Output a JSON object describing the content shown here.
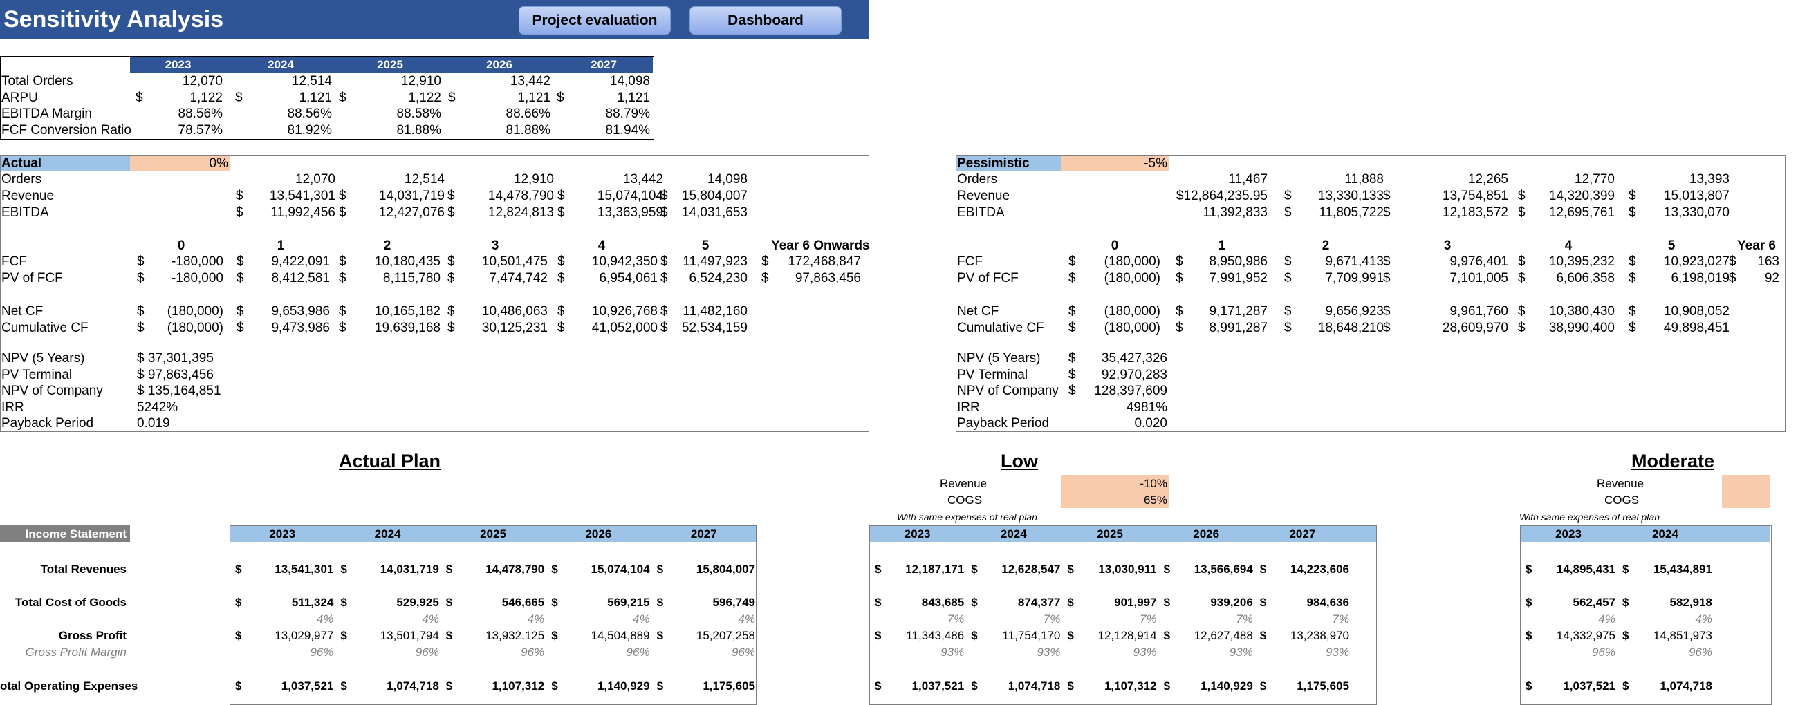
{
  "header": {
    "title": "Sensitivity Analysis",
    "buttons": [
      "Project evaluation",
      "Dashboard"
    ]
  },
  "summary": {
    "years": [
      "2023",
      "2024",
      "2025",
      "2026",
      "2027"
    ],
    "rows": [
      {
        "label": "Total Orders",
        "values": [
          "12,070",
          "12,514",
          "12,910",
          "13,442",
          "14,098"
        ]
      },
      {
        "label": "ARPU",
        "values": [
          "1,122",
          "1,121",
          "1,122",
          "1,121",
          "1,121"
        ]
      },
      {
        "label": "EBITDA Margin",
        "values": [
          "88.56%",
          "88.56%",
          "88.58%",
          "88.66%",
          "88.79%"
        ]
      },
      {
        "label": "FCF Conversion Ratio",
        "values": [
          "78.57%",
          "81.92%",
          "81.88%",
          "81.88%",
          "81.94%"
        ]
      }
    ]
  },
  "scenario_actual": {
    "name": "Actual",
    "pct": "0%",
    "ops": [
      {
        "label": "Orders",
        "values": [
          "12,070",
          "12,514",
          "12,910",
          "13,442",
          "14,098"
        ]
      },
      {
        "label": "Revenue",
        "values": [
          "13,541,301",
          "14,031,719",
          "14,478,790",
          "15,074,104",
          "15,804,007"
        ]
      },
      {
        "label": "EBITDA",
        "values": [
          "11,992,456",
          "12,427,076",
          "12,824,813",
          "13,363,959",
          "14,031,653"
        ]
      }
    ],
    "periods": [
      "0",
      "1",
      "2",
      "3",
      "4",
      "5",
      "Year 6 Onwards"
    ],
    "cf": [
      {
        "label": "FCF",
        "values": [
          "-180,000",
          "9,422,091",
          "10,180,435",
          "10,501,475",
          "10,942,350",
          "11,497,923",
          "172,468,847"
        ]
      },
      {
        "label": "PV of FCF",
        "values": [
          "-180,000",
          "8,412,581",
          "8,115,780",
          "7,474,742",
          "6,954,061",
          "6,524,230",
          "97,863,456"
        ]
      },
      {
        "label": "Net CF",
        "values": [
          "(180,000)",
          "9,653,986",
          "10,165,182",
          "10,486,063",
          "10,926,768",
          "11,482,160"
        ]
      },
      {
        "label": "Cumulative CF",
        "values": [
          "(180,000)",
          "9,473,986",
          "19,639,168",
          "30,125,231",
          "41,052,000",
          "52,534,159"
        ]
      }
    ],
    "metrics": [
      {
        "label": "NPV (5 Years)",
        "value": "$ 37,301,395"
      },
      {
        "label": "PV Terminal",
        "value": "$ 97,863,456"
      },
      {
        "label": "NPV of Company",
        "value": "$ 135,164,851"
      },
      {
        "label": "IRR",
        "value": "5242%"
      },
      {
        "label": "Payback Period",
        "value": "0.019"
      }
    ]
  },
  "scenario_pess": {
    "name": "Pessimistic",
    "pct": "-5%",
    "ops": [
      {
        "label": "Orders",
        "values": [
          "11,467",
          "11,888",
          "12,265",
          "12,770",
          "13,393"
        ]
      },
      {
        "label": "Revenue",
        "values": [
          "$12,864,235.95",
          "13,330,133",
          "13,754,851",
          "14,320,399",
          "15,013,807"
        ]
      },
      {
        "label": "EBITDA",
        "values": [
          "11,392,833",
          "11,805,722",
          "12,183,572",
          "12,695,761",
          "13,330,070"
        ]
      }
    ],
    "periods": [
      "0",
      "1",
      "2",
      "3",
      "4",
      "5",
      "Year 6"
    ],
    "cf": [
      {
        "label": "FCF",
        "values": [
          "(180,000)",
          "8,950,986",
          "9,671,413",
          "9,976,401",
          "10,395,232",
          "10,923,027",
          "163"
        ]
      },
      {
        "label": "PV of FCF",
        "values": [
          "(180,000)",
          "7,991,952",
          "7,709,991",
          "7,101,005",
          "6,606,358",
          "6,198,019",
          "92"
        ]
      },
      {
        "label": "Net CF",
        "values": [
          "(180,000)",
          "9,171,287",
          "9,656,923",
          "9,961,760",
          "10,380,430",
          "10,908,052"
        ]
      },
      {
        "label": "Cumulative CF",
        "values": [
          "(180,000)",
          "8,991,287",
          "18,648,210",
          "28,609,970",
          "38,990,400",
          "49,898,451"
        ]
      }
    ],
    "metrics": [
      {
        "label": "NPV (5 Years)",
        "value": "35,427,326"
      },
      {
        "label": "PV Terminal",
        "value": "92,970,283"
      },
      {
        "label": "NPV of Company",
        "value": "128,397,609"
      },
      {
        "label": "IRR",
        "value": "4981%"
      },
      {
        "label": "Payback Period",
        "value": "0.020"
      }
    ]
  },
  "plans": {
    "actual_title": "Actual Plan",
    "low_title": "Low",
    "moderate_title": "Moderate",
    "low_revenue_label": "Revenue",
    "low_revenue_pct": "-10%",
    "low_cogs_label": "COGS",
    "low_cogs_pct": "65%",
    "note": "With same expenses of real plan",
    "mod_revenue_label": "Revenue",
    "mod_cogs_label": "COGS",
    "is_label": "Income Statement",
    "years": [
      "2023",
      "2024",
      "2025",
      "2026",
      "2027"
    ],
    "row_labels": [
      "Total Revenues",
      "Total Cost of Goods",
      "Gross Profit",
      "Gross Profit Margin",
      "otal Operating Expenses"
    ],
    "actual": {
      "rev": [
        "13,541,301",
        "14,031,719",
        "14,478,790",
        "15,074,104",
        "15,804,007"
      ],
      "cogs": [
        "511,324",
        "529,925",
        "546,665",
        "569,215",
        "596,749"
      ],
      "cogs_pct": [
        "4%",
        "4%",
        "4%",
        "4%",
        "4%"
      ],
      "gp": [
        "13,029,977",
        "13,501,794",
        "13,932,125",
        "14,504,889",
        "15,207,258"
      ],
      "gpm": [
        "96%",
        "96%",
        "96%",
        "96%",
        "96%"
      ],
      "opex": [
        "1,037,521",
        "1,074,718",
        "1,107,312",
        "1,140,929",
        "1,175,605"
      ]
    },
    "low": {
      "rev": [
        "12,187,171",
        "12,628,547",
        "13,030,911",
        "13,566,694",
        "14,223,606"
      ],
      "cogs": [
        "843,685",
        "874,377",
        "901,997",
        "939,206",
        "984,636"
      ],
      "cogs_pct": [
        "7%",
        "7%",
        "7%",
        "7%",
        "7%"
      ],
      "gp": [
        "11,343,486",
        "11,754,170",
        "12,128,914",
        "12,627,488",
        "13,238,970"
      ],
      "gpm": [
        "93%",
        "93%",
        "93%",
        "93%",
        "93%"
      ],
      "opex": [
        "1,037,521",
        "1,074,718",
        "1,107,312",
        "1,140,929",
        "1,175,605"
      ]
    },
    "moderate": {
      "rev": [
        "14,895,431",
        "15,434,891"
      ],
      "cogs": [
        "562,457",
        "582,918"
      ],
      "cogs_pct": [
        "4%",
        "4%"
      ],
      "gp": [
        "14,332,975",
        "14,851,973"
      ],
      "gpm": [
        "96%",
        "96%"
      ],
      "opex": [
        "1,037,521",
        "1,074,718"
      ]
    }
  }
}
